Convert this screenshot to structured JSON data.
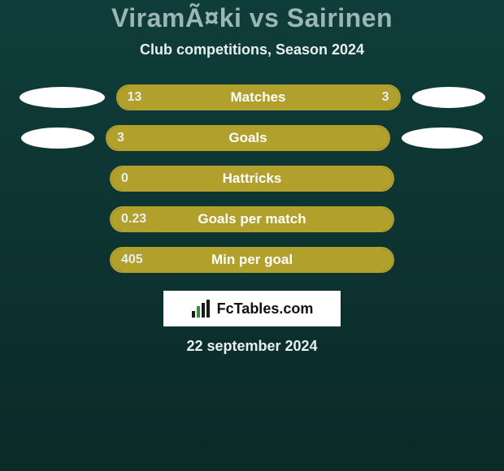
{
  "colors": {
    "page_bg_top": "#0f3d3a",
    "page_bg_bottom": "#0b2a28",
    "title_color": "#9bb7b5",
    "subtitle_color": "#e8efef",
    "bar_fill": "#b1a02c",
    "bar_border": "#b1a02c",
    "bar_track": "#0f3d3a",
    "bar_label_color": "#ffffff",
    "value_color": "#e8efef",
    "oval_fill": "#ffffff",
    "logo_bg": "#ffffff",
    "logo_text": "#111111",
    "logo_accent_dark": "#1a1a1a",
    "logo_accent_green": "#3a8f3a",
    "date_color": "#e8efef"
  },
  "title": "ViramÃ¤ki vs Sairinen",
  "subtitle": "Club competitions, Season 2024",
  "rows": [
    {
      "label": "Matches",
      "left_val": "13",
      "right_val": "3",
      "left_pct": 76,
      "right_pct": 24,
      "show_ovals": true,
      "left_oval_w": 105,
      "right_oval_w": 90
    },
    {
      "label": "Goals",
      "left_val": "3",
      "right_val": "",
      "left_pct": 100,
      "right_pct": 0,
      "show_ovals": true,
      "left_oval_w": 90,
      "right_oval_w": 100
    },
    {
      "label": "Hattricks",
      "left_val": "0",
      "right_val": "",
      "left_pct": 100,
      "right_pct": 0,
      "show_ovals": false,
      "left_oval_w": 0,
      "right_oval_w": 0
    },
    {
      "label": "Goals per match",
      "left_val": "0.23",
      "right_val": "",
      "left_pct": 100,
      "right_pct": 0,
      "show_ovals": false,
      "left_oval_w": 0,
      "right_oval_w": 0
    },
    {
      "label": "Min per goal",
      "left_val": "405",
      "right_val": "",
      "left_pct": 100,
      "right_pct": 0,
      "show_ovals": false,
      "left_oval_w": 0,
      "right_oval_w": 0
    }
  ],
  "logo_text": "FcTables.com",
  "date": "22 september 2024"
}
